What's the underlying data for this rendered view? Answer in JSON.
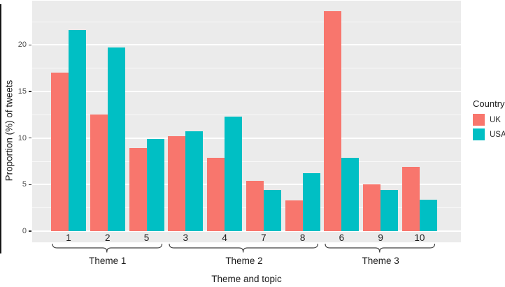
{
  "figure": {
    "panel_background": "#ebebeb",
    "gridline_color": "#ffffff",
    "axis_tick_text_color": "#4d4d4d",
    "text_color": "#1a1a1a",
    "page_background": "#ffffff"
  },
  "chart_data": {
    "type": "bar",
    "title": "",
    "xlabel": "Theme and topic",
    "ylabel": "Proportion (%) of tweets",
    "ylim": [
      0,
      24.75
    ],
    "yticks": [
      0,
      5,
      10,
      15,
      20
    ],
    "minor_gridlines": [
      2.5,
      7.5,
      12.5,
      17.5,
      22.5
    ],
    "grid": "horizontal white gridlines, major and minor, on grey panel",
    "categories": [
      "1",
      "2",
      "5",
      "3",
      "4",
      "7",
      "8",
      "6",
      "9",
      "10"
    ],
    "series": [
      {
        "name": "UK",
        "color": "#F8766D",
        "values": [
          17.0,
          12.5,
          8.9,
          10.2,
          7.9,
          5.4,
          3.3,
          23.6,
          5.0,
          6.9
        ]
      },
      {
        "name": "USA",
        "color": "#00BFC4",
        "values": [
          21.6,
          19.7,
          9.9,
          10.7,
          12.3,
          4.4,
          6.2,
          7.9,
          4.4,
          3.4
        ]
      }
    ],
    "theme_groups": [
      {
        "label": "Theme 1",
        "categories": [
          "1",
          "2",
          "5"
        ]
      },
      {
        "label": "Theme 2",
        "categories": [
          "3",
          "4",
          "7",
          "8"
        ]
      },
      {
        "label": "Theme 3",
        "categories": [
          "6",
          "9",
          "10"
        ]
      }
    ],
    "legend": {
      "title": "Country",
      "position": "right"
    }
  }
}
